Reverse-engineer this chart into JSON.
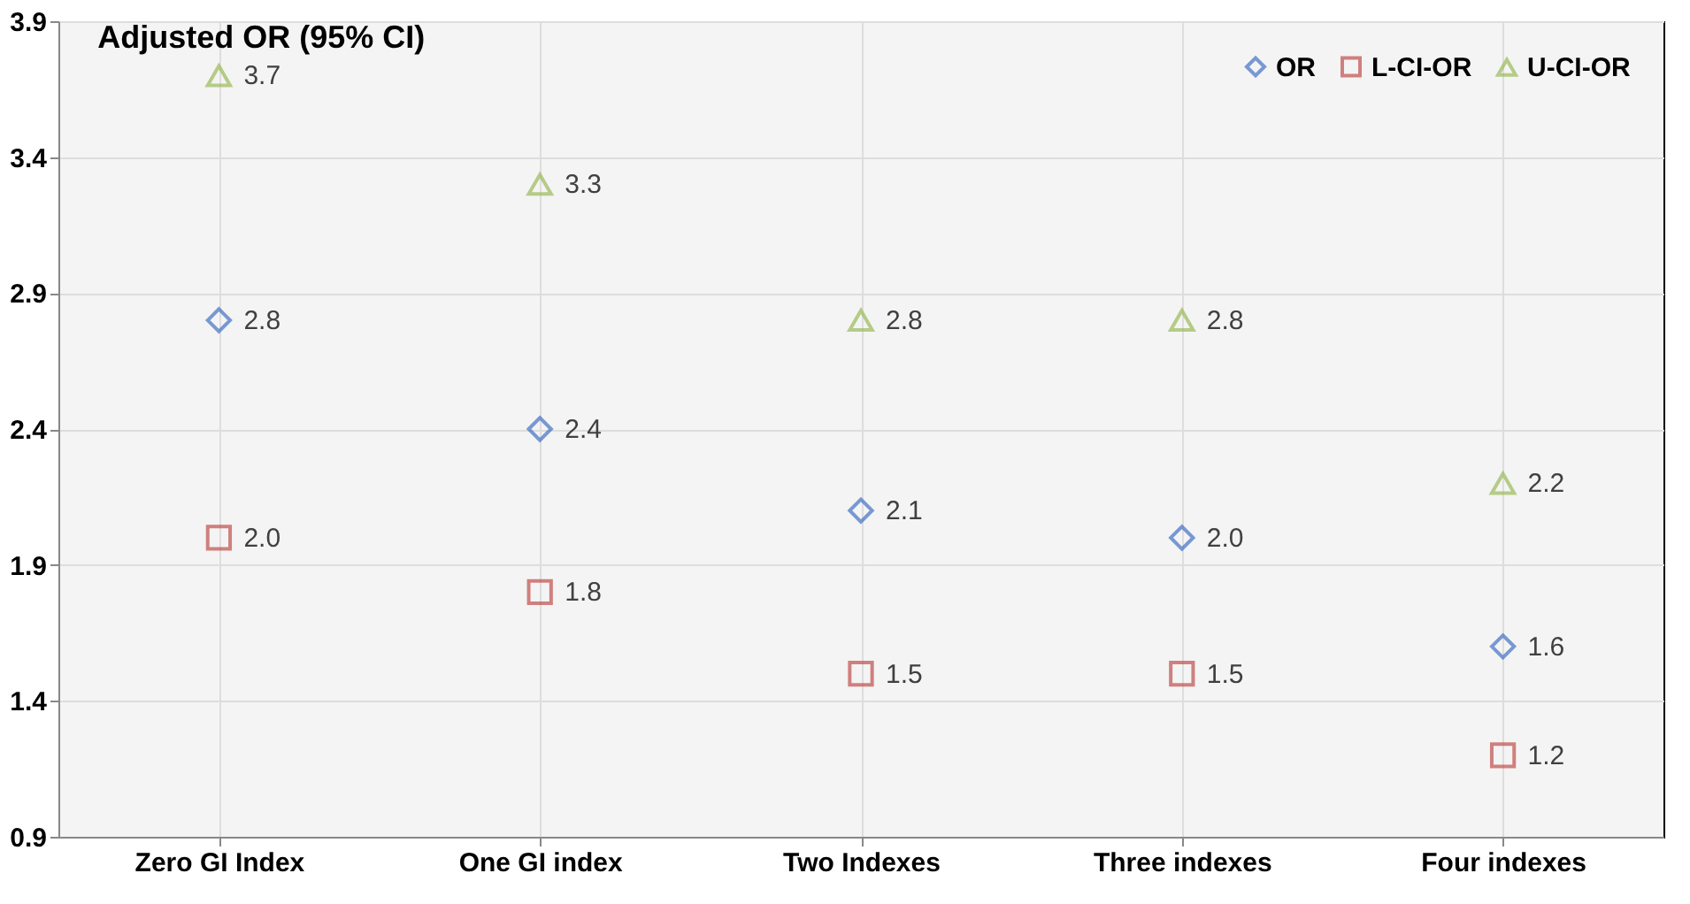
{
  "chart_data": {
    "type": "scatter",
    "title": "Adjusted OR (95% CI)",
    "categories": [
      "Zero GI Index",
      "One GI index",
      "Two Indexes",
      "Three indexes",
      "Four indexes"
    ],
    "series": [
      {
        "name": "OR",
        "color": "#4472c4",
        "marker": "diamond",
        "values": [
          2.8,
          2.4,
          2.1,
          2.0,
          1.6
        ],
        "value_labels": [
          "2.8",
          "2.4",
          "2.1",
          "2.0",
          "1.6"
        ]
      },
      {
        "name": "L-CI-OR",
        "color": "#c0504d",
        "marker": "square",
        "values": [
          2.0,
          1.8,
          1.5,
          1.5,
          1.2
        ],
        "value_labels": [
          "2.0",
          "1.8",
          "1.5",
          "1.5",
          "1.2"
        ]
      },
      {
        "name": "U-CI-OR",
        "color": "#9bbb59",
        "marker": "triangle",
        "values": [
          3.7,
          3.3,
          2.8,
          2.8,
          2.2
        ],
        "value_labels": [
          "3.7",
          "3.3",
          "2.8",
          "2.8",
          "2.2"
        ]
      }
    ],
    "ylim": [
      0.9,
      3.9
    ],
    "yticks": [
      0.9,
      1.4,
      1.9,
      2.4,
      2.9,
      3.4,
      3.9
    ],
    "grid": true,
    "legend": "top right"
  }
}
